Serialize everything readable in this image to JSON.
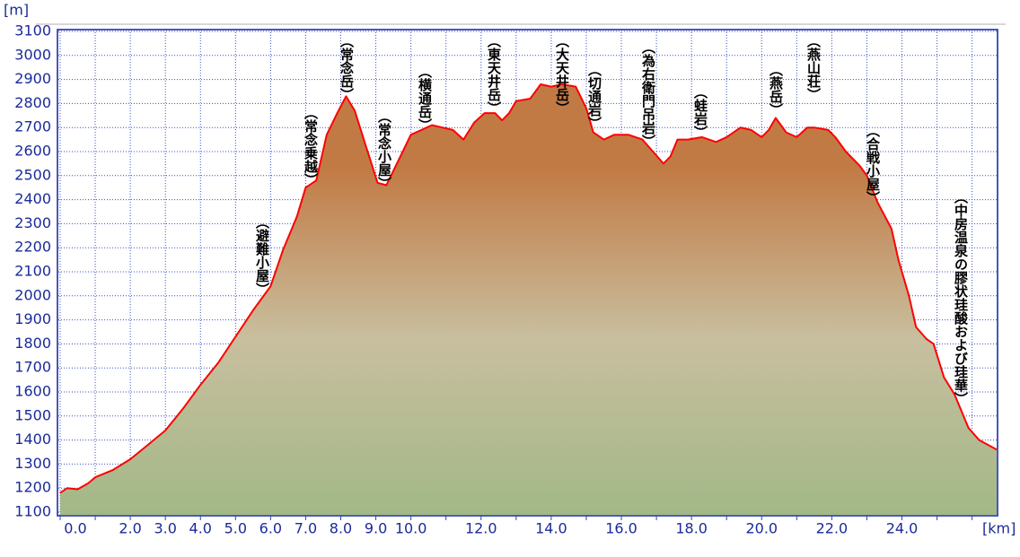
{
  "chart_data": {
    "type": "line",
    "y_label": "[m]",
    "x_label": "[km]",
    "x": [
      0,
      0.2,
      0.5,
      0.8,
      1.0,
      1.5,
      2.0,
      2.5,
      3.0,
      3.5,
      4.0,
      4.5,
      5.0,
      5.5,
      6.0,
      6.35,
      6.75,
      7.0,
      7.3,
      7.6,
      7.9,
      8.15,
      8.4,
      8.7,
      9.05,
      9.3,
      9.7,
      10.0,
      10.3,
      10.6,
      10.9,
      11.2,
      11.5,
      11.8,
      12.1,
      12.4,
      12.6,
      12.8,
      13.0,
      13.4,
      13.7,
      14.0,
      14.3,
      14.7,
      15.0,
      15.2,
      15.5,
      15.8,
      16.2,
      16.6,
      16.9,
      17.2,
      17.4,
      17.6,
      17.9,
      18.3,
      18.7,
      19.0,
      19.4,
      19.7,
      20.0,
      20.2,
      20.4,
      20.7,
      21.0,
      21.3,
      21.5,
      21.9,
      22.1,
      22.4,
      22.8,
      23.0,
      23.3,
      23.7,
      23.9,
      24.2,
      24.4,
      24.7,
      24.9,
      25.2,
      25.5,
      25.9,
      26.2,
      26.7
    ],
    "values": [
      1180,
      1200,
      1195,
      1220,
      1245,
      1275,
      1320,
      1380,
      1440,
      1530,
      1630,
      1720,
      1830,
      1940,
      2040,
      2190,
      2330,
      2450,
      2480,
      2670,
      2760,
      2830,
      2770,
      2630,
      2470,
      2460,
      2580,
      2670,
      2690,
      2710,
      2700,
      2690,
      2650,
      2720,
      2760,
      2760,
      2730,
      2760,
      2810,
      2820,
      2880,
      2870,
      2880,
      2870,
      2780,
      2680,
      2650,
      2670,
      2670,
      2650,
      2600,
      2550,
      2580,
      2650,
      2650,
      2660,
      2640,
      2660,
      2700,
      2690,
      2660,
      2690,
      2740,
      2680,
      2660,
      2700,
      2700,
      2690,
      2660,
      2600,
      2540,
      2500,
      2390,
      2280,
      2150,
      2000,
      1870,
      1820,
      1800,
      1660,
      1590,
      1450,
      1400,
      1360
    ],
    "color": "#ff0000",
    "fill_colors": [
      "#a3b887",
      "#c8bf9f",
      "#c27a45"
    ],
    "xlim": [
      0,
      26.7
    ],
    "ylim": [
      1100,
      3100
    ],
    "xticks": [
      {
        "value": 0,
        "label": "0.0"
      },
      {
        "value": 1,
        "label": null
      },
      {
        "value": 2,
        "label": "2.0"
      },
      {
        "value": 3,
        "label": "3.0"
      },
      {
        "value": 4,
        "label": "4.0"
      },
      {
        "value": 5,
        "label": "5.0"
      },
      {
        "value": 6,
        "label": "6.0"
      },
      {
        "value": 7,
        "label": "7.0"
      },
      {
        "value": 8,
        "label": "8.0"
      },
      {
        "value": 9,
        "label": "9.0"
      },
      {
        "value": 10,
        "label": "10.0"
      },
      {
        "value": 11,
        "label": null
      },
      {
        "value": 12,
        "label": "12.0"
      },
      {
        "value": 13,
        "label": null
      },
      {
        "value": 14,
        "label": "14.0"
      },
      {
        "value": 15,
        "label": null
      },
      {
        "value": 16,
        "label": "16.0"
      },
      {
        "value": 17,
        "label": null
      },
      {
        "value": 18,
        "label": "18.0"
      },
      {
        "value": 19,
        "label": null
      },
      {
        "value": 20,
        "label": "20.0"
      },
      {
        "value": 21,
        "label": null
      },
      {
        "value": 22,
        "label": "22.0"
      },
      {
        "value": 23,
        "label": null
      },
      {
        "value": 24,
        "label": "24.0"
      },
      {
        "value": 25,
        "label": null
      },
      {
        "value": 26,
        "label": null
      }
    ],
    "yticks": [
      1100,
      1200,
      1300,
      1400,
      1500,
      1600,
      1700,
      1800,
      1900,
      2000,
      2100,
      2200,
      2300,
      2400,
      2500,
      2600,
      2700,
      2800,
      2900,
      3000,
      3100
    ],
    "grid": true,
    "annotations": [
      "（避難小屋）",
      "（常念乗越）",
      "（常念岳）",
      "（常念小屋）",
      "（横通岳）",
      "（東天井岳）",
      "（大天井岳）",
      "（切通岩）",
      "（為右衛門吊岩）",
      "（蛙岩）",
      "（燕岳）",
      "（燕山荘）",
      "（合戦小屋）",
      "（中房温泉の膠状珪酸および珪華）"
    ]
  }
}
